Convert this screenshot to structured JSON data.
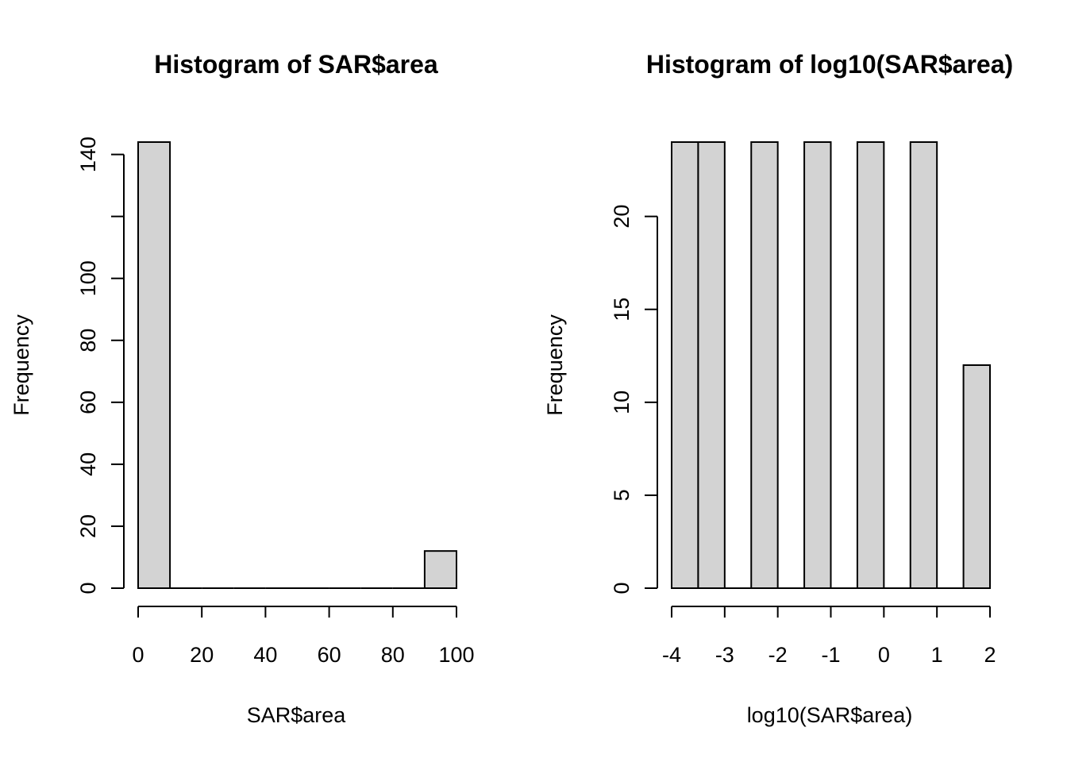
{
  "chart_data": [
    {
      "type": "bar",
      "title": "Histogram of SAR$area",
      "xlabel": "SAR$area",
      "ylabel": "Frequency",
      "xlim": [
        0,
        100
      ],
      "ylim": [
        0,
        144
      ],
      "x_ticks": [
        "0",
        "20",
        "40",
        "60",
        "80",
        "100"
      ],
      "y_ticks": [
        "0",
        "20",
        "40",
        "60",
        "80",
        "100",
        "120",
        "140"
      ],
      "y_tick_labels": [
        "0",
        "20",
        "40",
        "60",
        "80",
        "100",
        "",
        "140"
      ],
      "bins": [
        {
          "x0": 0,
          "x1": 10,
          "count": 144
        },
        {
          "x0": 10,
          "x1": 20,
          "count": 0
        },
        {
          "x0": 20,
          "x1": 30,
          "count": 0
        },
        {
          "x0": 30,
          "x1": 40,
          "count": 0
        },
        {
          "x0": 40,
          "x1": 50,
          "count": 0
        },
        {
          "x0": 50,
          "x1": 60,
          "count": 0
        },
        {
          "x0": 60,
          "x1": 70,
          "count": 0
        },
        {
          "x0": 70,
          "x1": 80,
          "count": 0
        },
        {
          "x0": 80,
          "x1": 90,
          "count": 0
        },
        {
          "x0": 90,
          "x1": 100,
          "count": 12
        }
      ],
      "grid": false
    },
    {
      "type": "bar",
      "title": "Histogram of log10(SAR$area)",
      "xlabel": "log10(SAR$area)",
      "ylabel": "Frequency",
      "xlim": [
        -4,
        2
      ],
      "ylim": [
        0,
        24
      ],
      "x_ticks": [
        "-4",
        "-3",
        "-2",
        "-1",
        "0",
        "1",
        "2"
      ],
      "y_ticks": [
        "0",
        "5",
        "10",
        "15",
        "20"
      ],
      "bins": [
        {
          "x0": -4.0,
          "x1": -3.5,
          "count": 24
        },
        {
          "x0": -3.5,
          "x1": -3.0,
          "count": 24
        },
        {
          "x0": -3.0,
          "x1": -2.5,
          "count": 0
        },
        {
          "x0": -2.5,
          "x1": -2.0,
          "count": 24
        },
        {
          "x0": -2.0,
          "x1": -1.5,
          "count": 0
        },
        {
          "x0": -1.5,
          "x1": -1.0,
          "count": 24
        },
        {
          "x0": -1.0,
          "x1": -0.5,
          "count": 0
        },
        {
          "x0": -0.5,
          "x1": 0.0,
          "count": 24
        },
        {
          "x0": 0.0,
          "x1": 0.5,
          "count": 0
        },
        {
          "x0": 0.5,
          "x1": 1.0,
          "count": 24
        },
        {
          "x0": 1.0,
          "x1": 1.5,
          "count": 0
        },
        {
          "x0": 1.5,
          "x1": 2.0,
          "count": 12
        }
      ],
      "grid": false
    }
  ]
}
